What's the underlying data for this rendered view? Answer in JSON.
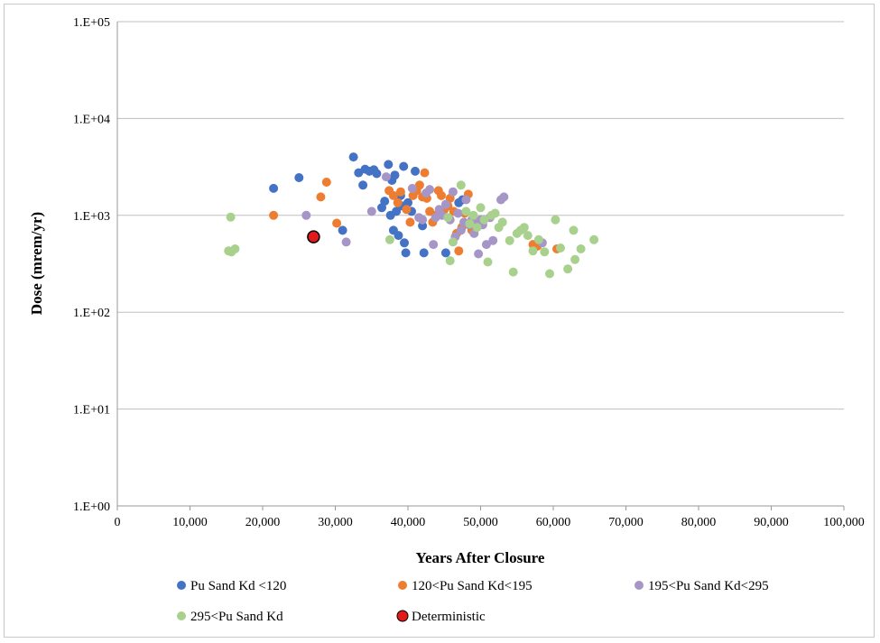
{
  "chart_data": {
    "type": "scatter",
    "xlabel": "Years After Closure",
    "ylabel": "Dose (mrem/yr)",
    "xlim": [
      0,
      100000
    ],
    "ylim": [
      1,
      100000
    ],
    "yscale": "log",
    "grid": "horizontal",
    "legend_position": "bottom",
    "x_ticks": [
      "0",
      "10,000",
      "20,000",
      "30,000",
      "40,000",
      "50,000",
      "60,000",
      "70,000",
      "80,000",
      "90,000",
      "100,000"
    ],
    "y_ticks": [
      "1.E+00",
      "1.E+01",
      "1.E+02",
      "1.E+03",
      "1.E+04",
      "1.E+05"
    ],
    "series": [
      {
        "name": "Pu Sand Kd <120",
        "color": "#4472c4",
        "points": [
          [
            21500,
            1900
          ],
          [
            25000,
            2450
          ],
          [
            31000,
            700
          ],
          [
            32500,
            4000
          ],
          [
            33200,
            2750
          ],
          [
            33800,
            2050
          ],
          [
            34100,
            3000
          ],
          [
            34700,
            2850
          ],
          [
            35300,
            2950
          ],
          [
            35700,
            2700
          ],
          [
            36400,
            1200
          ],
          [
            36800,
            1400
          ],
          [
            37300,
            3350
          ],
          [
            37600,
            1000
          ],
          [
            37800,
            2300
          ],
          [
            38000,
            700
          ],
          [
            38200,
            2600
          ],
          [
            38400,
            1100
          ],
          [
            38700,
            620
          ],
          [
            39000,
            1600
          ],
          [
            39200,
            1250
          ],
          [
            39400,
            3200
          ],
          [
            39500,
            520
          ],
          [
            39700,
            410
          ],
          [
            40000,
            1350
          ],
          [
            40500,
            1100
          ],
          [
            41000,
            2850
          ],
          [
            42000,
            780
          ],
          [
            42200,
            410
          ],
          [
            45200,
            410
          ],
          [
            47000,
            1350
          ],
          [
            47500,
            1450
          ]
        ]
      },
      {
        "name": "120<Pu Sand Kd<195",
        "color": "#ed7d31",
        "points": [
          [
            21500,
            1000
          ],
          [
            28000,
            1550
          ],
          [
            28800,
            2200
          ],
          [
            30200,
            830
          ],
          [
            37400,
            1800
          ],
          [
            38000,
            1600
          ],
          [
            38600,
            1350
          ],
          [
            39000,
            1750
          ],
          [
            39800,
            1150
          ],
          [
            40300,
            850
          ],
          [
            40700,
            1600
          ],
          [
            41200,
            1800
          ],
          [
            41600,
            2050
          ],
          [
            42000,
            1550
          ],
          [
            42300,
            2750
          ],
          [
            42600,
            1500
          ],
          [
            43000,
            1100
          ],
          [
            43400,
            850
          ],
          [
            43800,
            1000
          ],
          [
            44200,
            1800
          ],
          [
            44600,
            1600
          ],
          [
            45000,
            1150
          ],
          [
            45500,
            1250
          ],
          [
            45800,
            1500
          ],
          [
            46300,
            1100
          ],
          [
            46700,
            650
          ],
          [
            47000,
            430
          ],
          [
            47400,
            750
          ],
          [
            47800,
            1050
          ],
          [
            48300,
            1650
          ],
          [
            48800,
            700
          ],
          [
            49300,
            850
          ],
          [
            57200,
            500
          ],
          [
            57800,
            480
          ],
          [
            60500,
            450
          ]
        ]
      },
      {
        "name": "195<Pu Sand Kd<295",
        "color": "#a696c8",
        "points": [
          [
            26000,
            1000
          ],
          [
            31500,
            530
          ],
          [
            35000,
            1100
          ],
          [
            37000,
            2500
          ],
          [
            40600,
            1900
          ],
          [
            41500,
            950
          ],
          [
            42000,
            900
          ],
          [
            42500,
            1700
          ],
          [
            43000,
            1850
          ],
          [
            43500,
            500
          ],
          [
            43800,
            950
          ],
          [
            44300,
            1150
          ],
          [
            44700,
            1000
          ],
          [
            45200,
            1300
          ],
          [
            45800,
            900
          ],
          [
            46200,
            1750
          ],
          [
            46500,
            600
          ],
          [
            46900,
            1050
          ],
          [
            47300,
            700
          ],
          [
            47700,
            850
          ],
          [
            48000,
            1450
          ],
          [
            48400,
            800
          ],
          [
            48800,
            900
          ],
          [
            49100,
            650
          ],
          [
            49400,
            850
          ],
          [
            49700,
            400
          ],
          [
            50000,
            900
          ],
          [
            50300,
            800
          ],
          [
            50800,
            500
          ],
          [
            51300,
            950
          ],
          [
            51700,
            550
          ],
          [
            52800,
            1450
          ],
          [
            53200,
            1550
          ],
          [
            58500,
            520
          ]
        ]
      },
      {
        "name": "295<Pu Sand Kd",
        "color": "#a9d18e",
        "points": [
          [
            15300,
            430
          ],
          [
            15600,
            960
          ],
          [
            15700,
            420
          ],
          [
            16200,
            450
          ],
          [
            37500,
            560
          ],
          [
            45500,
            950
          ],
          [
            45800,
            340
          ],
          [
            46200,
            530
          ],
          [
            47300,
            2050
          ],
          [
            48000,
            1100
          ],
          [
            48500,
            820
          ],
          [
            49000,
            1000
          ],
          [
            49500,
            750
          ],
          [
            50000,
            1200
          ],
          [
            50500,
            900
          ],
          [
            51000,
            330
          ],
          [
            51500,
            1000
          ],
          [
            52000,
            1050
          ],
          [
            52500,
            750
          ],
          [
            53000,
            850
          ],
          [
            54000,
            550
          ],
          [
            54500,
            260
          ],
          [
            55000,
            650
          ],
          [
            55500,
            700
          ],
          [
            56000,
            750
          ],
          [
            56500,
            620
          ],
          [
            57200,
            430
          ],
          [
            58000,
            560
          ],
          [
            58800,
            420
          ],
          [
            59500,
            250
          ],
          [
            60300,
            900
          ],
          [
            61000,
            460
          ],
          [
            62000,
            280
          ],
          [
            62800,
            700
          ],
          [
            63000,
            350
          ],
          [
            63800,
            450
          ],
          [
            65600,
            560
          ]
        ]
      },
      {
        "name": "Deterministic",
        "color": "#e31a1c",
        "points": [
          [
            27000,
            600
          ]
        ]
      }
    ]
  }
}
